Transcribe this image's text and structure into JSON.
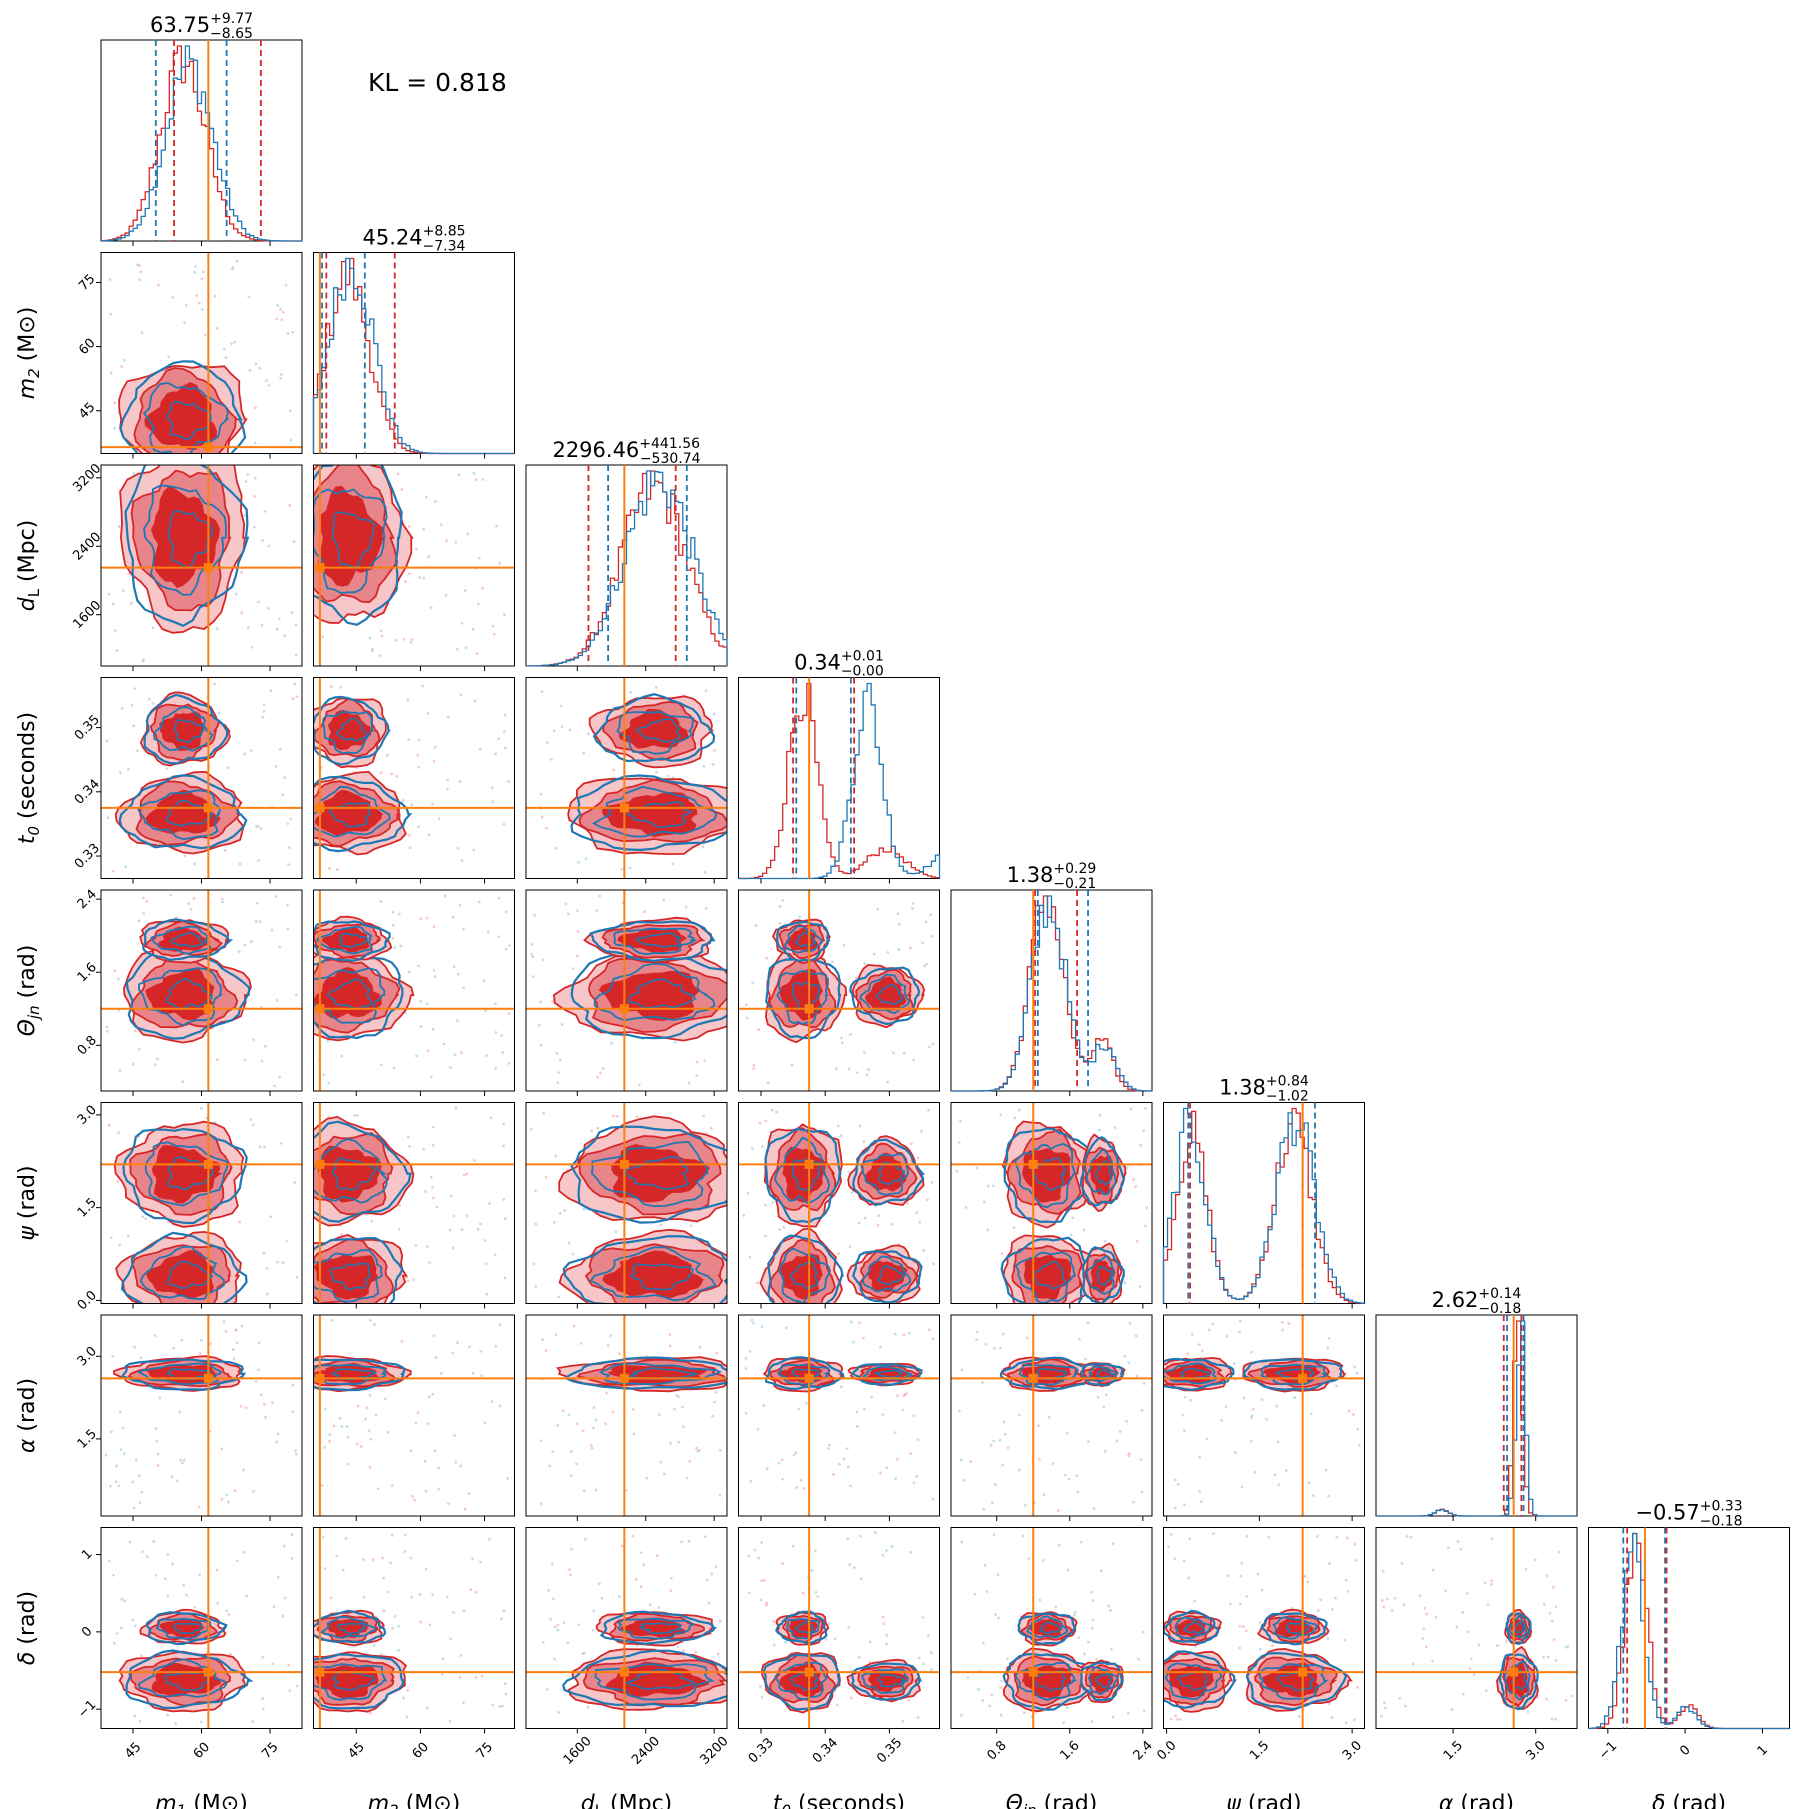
{
  "annotation": "KL = 0.818",
  "colors": {
    "blue": "#1f77b4",
    "red": "#d62728",
    "red_mid": "#e8858a",
    "red_light": "#f6c6c8",
    "truth": "#ff7f0e"
  },
  "chart_data": {
    "type": "corner",
    "parameters": [
      {
        "key": "m1",
        "label_sym": "m",
        "label_sub": "1",
        "label_unit": "(M⊙)",
        "range": [
          38,
          82
        ],
        "ticks": [
          "45",
          "60",
          "75"
        ],
        "tick_values": [
          45,
          60,
          75
        ],
        "truth": 61.5,
        "summary": {
          "median": "63.75",
          "plus": "+9.77",
          "minus": "−8.65"
        },
        "blue_q": [
          50,
          65.5
        ],
        "red_q": [
          54,
          73
        ]
      },
      {
        "key": "m2",
        "label_sym": "m",
        "label_sub": "2",
        "label_unit": "(M⊙)",
        "range": [
          35,
          82
        ],
        "ticks": [
          "45",
          "60",
          "75"
        ],
        "tick_values": [
          45,
          60,
          75
        ],
        "truth": 36.5,
        "summary": {
          "median": "45.24",
          "plus": "+8.85",
          "minus": "−7.34"
        },
        "blue_q": [
          37,
          47
        ],
        "red_q": [
          38,
          54
        ]
      },
      {
        "key": "dL",
        "label_sym": "d",
        "label_sub": "L",
        "label_unit": "(Mpc)",
        "range": [
          1000,
          3350
        ],
        "ticks": [
          "1600",
          "2400",
          "3200"
        ],
        "tick_values": [
          1600,
          2400,
          3200
        ],
        "truth": 2150,
        "summary": {
          "median": "2296.46",
          "plus": "+441.56",
          "minus": "−530.74"
        },
        "blue_q": [
          1960,
          2880
        ],
        "red_q": [
          1730,
          2750
        ]
      },
      {
        "key": "t0",
        "label_sym": "t",
        "label_sub": "0",
        "label_unit": "(seconds)",
        "range": [
          0.3265,
          0.3578
        ],
        "ticks": [
          "0.33",
          "0.34",
          "0.35"
        ],
        "tick_values": [
          0.33,
          0.34,
          0.35
        ],
        "truth": 0.3375,
        "summary": {
          "median": "0.34",
          "plus": "+0.01",
          "minus": "−0.00"
        },
        "blue_q": [
          0.3355,
          0.344
        ],
        "red_q": [
          0.335,
          0.3445
        ]
      },
      {
        "key": "theta_jn",
        "label_sym": "Θ",
        "label_sub": "jn",
        "label_unit": "(rad)",
        "range": [
          0.3,
          2.5
        ],
        "ticks": [
          "0.8",
          "1.6",
          "2.4"
        ],
        "tick_values": [
          0.8,
          1.6,
          2.4
        ],
        "truth": 1.2,
        "summary": {
          "median": "1.38",
          "plus": "+0.29",
          "minus": "−0.21"
        },
        "blue_q": [
          1.25,
          1.8
        ],
        "red_q": [
          1.22,
          1.68
        ]
      },
      {
        "key": "psi",
        "label_sym": "ψ",
        "label_sub": "",
        "label_unit": "(rad)",
        "range": [
          -0.05,
          3.2
        ],
        "ticks": [
          "0.0",
          "1.5",
          "3.0"
        ],
        "tick_values": [
          0,
          1.5,
          3
        ],
        "truth": 2.2,
        "summary": {
          "median": "1.38",
          "plus": "+0.84",
          "minus": "−1.02"
        },
        "blue_q": [
          0.35,
          2.4
        ],
        "red_q": [
          0.38,
          2.2
        ]
      },
      {
        "key": "alpha",
        "label_sym": "α",
        "label_sub": "",
        "label_unit": "(rad)",
        "range": [
          0.1,
          3.75
        ],
        "ticks": [
          "1.5",
          "3.0"
        ],
        "tick_values": [
          1.5,
          3
        ],
        "truth": 2.6,
        "summary": {
          "median": "2.62",
          "plus": "+0.14",
          "minus": "−0.18"
        },
        "blue_q": [
          2.48,
          2.78
        ],
        "red_q": [
          2.42,
          2.74
        ]
      },
      {
        "key": "delta",
        "label_sym": "δ",
        "label_sub": "",
        "label_unit": "(rad)",
        "range": [
          -1.25,
          1.35
        ],
        "ticks": [
          "−1",
          "0",
          "1"
        ],
        "tick_values": [
          -1,
          0,
          1
        ],
        "truth": -0.52,
        "summary": {
          "median": "−0.57",
          "plus": "+0.33",
          "minus": "−0.18"
        },
        "blue_q": [
          -0.8,
          -0.26
        ],
        "red_q": [
          -0.75,
          -0.24
        ]
      }
    ],
    "series": [
      {
        "name": "blue posterior",
        "color": "#1f77b4"
      },
      {
        "name": "red posterior",
        "color": "#d62728"
      }
    ],
    "peaks": {
      "m1": [
        {
          "mu": 56,
          "s": 5,
          "w": 1.0
        }
      ],
      "m2": [
        {
          "mu": 43,
          "s": 5,
          "w": 1.0
        }
      ],
      "dL": [
        {
          "mu": 2500,
          "s": 380,
          "w": 1.0
        }
      ],
      "t0": [
        {
          "mu": 0.3365,
          "s": 0.0022,
          "w": 1.0
        },
        {
          "mu": 0.3495,
          "s": 0.003,
          "w": 0.16
        }
      ],
      "theta_jn": [
        {
          "mu": 1.35,
          "s": 0.18,
          "w": 1.0
        },
        {
          "mu": 1.95,
          "s": 0.12,
          "w": 0.25
        }
      ],
      "psi": [
        {
          "mu": 0.4,
          "s": 0.25,
          "w": 0.95
        },
        {
          "mu": 2.05,
          "s": 0.3,
          "w": 1.0
        }
      ],
      "alpha": [
        {
          "mu": 2.68,
          "s": 0.08,
          "w": 1.0
        },
        {
          "mu": 1.3,
          "s": 0.12,
          "w": 0.03
        }
      ],
      "delta": [
        {
          "mu": -0.63,
          "s": 0.14,
          "w": 1.0
        },
        {
          "mu": 0.05,
          "s": 0.12,
          "w": 0.12
        }
      ]
    }
  }
}
